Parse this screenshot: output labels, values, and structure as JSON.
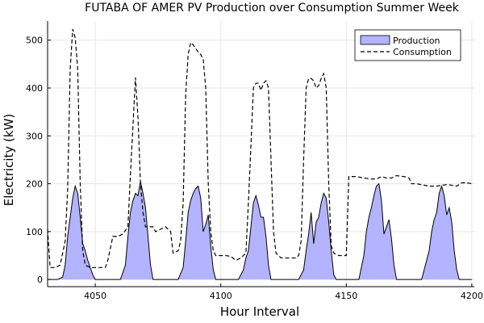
{
  "chart_data": {
    "type": "area",
    "title": "FUTABA OF AMER PV Production over Consumption Summer Week",
    "xlabel": "Hour Interval",
    "ylabel": "Electricity (kW)",
    "xlim": [
      4031,
      4201
    ],
    "ylim": [
      -15,
      540
    ],
    "xticks": [
      4050,
      4100,
      4150,
      4200
    ],
    "yticks": [
      0,
      100,
      200,
      300,
      400,
      500
    ],
    "grid": true,
    "legend_position": "top-right",
    "series": [
      {
        "name": "Production",
        "style": "filled-area",
        "color": "#b3b3ff",
        "points": [
          [
            4031,
            0
          ],
          [
            4035,
            0
          ],
          [
            4037,
            5
          ],
          [
            4038,
            30
          ],
          [
            4039,
            90
          ],
          [
            4040,
            130
          ],
          [
            4041,
            170
          ],
          [
            4042,
            195
          ],
          [
            4043,
            180
          ],
          [
            4044,
            130
          ],
          [
            4045,
            75
          ],
          [
            4046,
            60
          ],
          [
            4047,
            40
          ],
          [
            4048,
            25
          ],
          [
            4049,
            10
          ],
          [
            4050,
            0
          ],
          [
            4060,
            0
          ],
          [
            4062,
            30
          ],
          [
            4063,
            90
          ],
          [
            4064,
            140
          ],
          [
            4065,
            165
          ],
          [
            4066,
            180
          ],
          [
            4067,
            175
          ],
          [
            4068,
            205
          ],
          [
            4069,
            180
          ],
          [
            4070,
            150
          ],
          [
            4071,
            90
          ],
          [
            4072,
            30
          ],
          [
            4073,
            0
          ],
          [
            4083,
            0
          ],
          [
            4085,
            25
          ],
          [
            4086,
            80
          ],
          [
            4087,
            140
          ],
          [
            4088,
            165
          ],
          [
            4089,
            180
          ],
          [
            4090,
            190
          ],
          [
            4091,
            195
          ],
          [
            4092,
            170
          ],
          [
            4093,
            100
          ],
          [
            4094,
            115
          ],
          [
            4095,
            135
          ],
          [
            4096,
            70
          ],
          [
            4097,
            20
          ],
          [
            4098,
            0
          ],
          [
            4107,
            0
          ],
          [
            4109,
            20
          ],
          [
            4110,
            45
          ],
          [
            4111,
            60
          ],
          [
            4112,
            110
          ],
          [
            4113,
            160
          ],
          [
            4114,
            175
          ],
          [
            4115,
            155
          ],
          [
            4116,
            130
          ],
          [
            4117,
            130
          ],
          [
            4118,
            90
          ],
          [
            4119,
            30
          ],
          [
            4120,
            0
          ],
          [
            4131,
            0
          ],
          [
            4133,
            20
          ],
          [
            4134,
            60
          ],
          [
            4135,
            95
          ],
          [
            4136,
            140
          ],
          [
            4137,
            75
          ],
          [
            4138,
            120
          ],
          [
            4139,
            130
          ],
          [
            4140,
            160
          ],
          [
            4141,
            180
          ],
          [
            4142,
            170
          ],
          [
            4143,
            120
          ],
          [
            4144,
            60
          ],
          [
            4145,
            10
          ],
          [
            4146,
            0
          ],
          [
            4155,
            0
          ],
          [
            4157,
            50
          ],
          [
            4158,
            100
          ],
          [
            4159,
            130
          ],
          [
            4160,
            150
          ],
          [
            4161,
            175
          ],
          [
            4162,
            195
          ],
          [
            4163,
            200
          ],
          [
            4164,
            165
          ],
          [
            4165,
            95
          ],
          [
            4166,
            110
          ],
          [
            4167,
            125
          ],
          [
            4168,
            85
          ],
          [
            4169,
            30
          ],
          [
            4170,
            0
          ],
          [
            4180,
            0
          ],
          [
            4182,
            40
          ],
          [
            4183,
            60
          ],
          [
            4184,
            100
          ],
          [
            4185,
            125
          ],
          [
            4186,
            140
          ],
          [
            4187,
            180
          ],
          [
            4188,
            195
          ],
          [
            4189,
            175
          ],
          [
            4190,
            135
          ],
          [
            4191,
            150
          ],
          [
            4192,
            120
          ],
          [
            4193,
            60
          ],
          [
            4194,
            20
          ],
          [
            4195,
            0
          ],
          [
            4200,
            0
          ]
        ]
      },
      {
        "name": "Consumption",
        "style": "dashed-line",
        "color": "#000000",
        "points": [
          [
            4031,
            105
          ],
          [
            4032,
            25
          ],
          [
            4034,
            25
          ],
          [
            4036,
            30
          ],
          [
            4038,
            80
          ],
          [
            4039,
            190
          ],
          [
            4040,
            440
          ],
          [
            4041,
            523
          ],
          [
            4042,
            505
          ],
          [
            4043,
            440
          ],
          [
            4044,
            200
          ],
          [
            4045,
            60
          ],
          [
            4046,
            30
          ],
          [
            4048,
            25
          ],
          [
            4051,
            25
          ],
          [
            4054,
            25
          ],
          [
            4055,
            40
          ],
          [
            4057,
            90
          ],
          [
            4059,
            90
          ],
          [
            4061,
            95
          ],
          [
            4063,
            110
          ],
          [
            4064,
            220
          ],
          [
            4065,
            320
          ],
          [
            4066,
            422
          ],
          [
            4067,
            340
          ],
          [
            4068,
            200
          ],
          [
            4069,
            140
          ],
          [
            4070,
            110
          ],
          [
            4073,
            110
          ],
          [
            4074,
            100
          ],
          [
            4076,
            105
          ],
          [
            4078,
            110
          ],
          [
            4080,
            100
          ],
          [
            4081,
            55
          ],
          [
            4083,
            60
          ],
          [
            4084,
            80
          ],
          [
            4085,
            160
          ],
          [
            4086,
            385
          ],
          [
            4087,
            470
          ],
          [
            4088,
            495
          ],
          [
            4089,
            490
          ],
          [
            4091,
            475
          ],
          [
            4092,
            470
          ],
          [
            4093,
            460
          ],
          [
            4094,
            400
          ],
          [
            4095,
            200
          ],
          [
            4096,
            100
          ],
          [
            4097,
            60
          ],
          [
            4098,
            50
          ],
          [
            4102,
            50
          ],
          [
            4104,
            48
          ],
          [
            4106,
            40
          ],
          [
            4108,
            45
          ],
          [
            4110,
            55
          ],
          [
            4111,
            160
          ],
          [
            4112,
            280
          ],
          [
            4113,
            400
          ],
          [
            4114,
            410
          ],
          [
            4115,
            410
          ],
          [
            4116,
            395
          ],
          [
            4117,
            410
          ],
          [
            4118,
            415
          ],
          [
            4119,
            400
          ],
          [
            4120,
            250
          ],
          [
            4121,
            100
          ],
          [
            4122,
            55
          ],
          [
            4124,
            45
          ],
          [
            4127,
            45
          ],
          [
            4130,
            45
          ],
          [
            4131,
            50
          ],
          [
            4132,
            80
          ],
          [
            4133,
            250
          ],
          [
            4134,
            400
          ],
          [
            4135,
            420
          ],
          [
            4136,
            420
          ],
          [
            4137,
            415
          ],
          [
            4138,
            400
          ],
          [
            4139,
            405
          ],
          [
            4140,
            420
          ],
          [
            4141,
            430
          ],
          [
            4142,
            400
          ],
          [
            4143,
            200
          ],
          [
            4144,
            70
          ],
          [
            4145,
            55
          ],
          [
            4147,
            50
          ],
          [
            4150,
            50
          ],
          [
            4151,
            215
          ],
          [
            4154,
            215
          ],
          [
            4157,
            212
          ],
          [
            4160,
            210
          ],
          [
            4162,
            210
          ],
          [
            4164,
            215
          ],
          [
            4166,
            212
          ],
          [
            4168,
            212
          ],
          [
            4170,
            217
          ],
          [
            4173,
            215
          ],
          [
            4175,
            212
          ],
          [
            4176,
            200
          ],
          [
            4178,
            200
          ],
          [
            4180,
            198
          ],
          [
            4183,
            195
          ],
          [
            4186,
            195
          ],
          [
            4188,
            197
          ],
          [
            4190,
            198
          ],
          [
            4192,
            197
          ],
          [
            4194,
            195
          ],
          [
            4196,
            202
          ],
          [
            4198,
            202
          ],
          [
            4200,
            200
          ]
        ]
      }
    ]
  }
}
